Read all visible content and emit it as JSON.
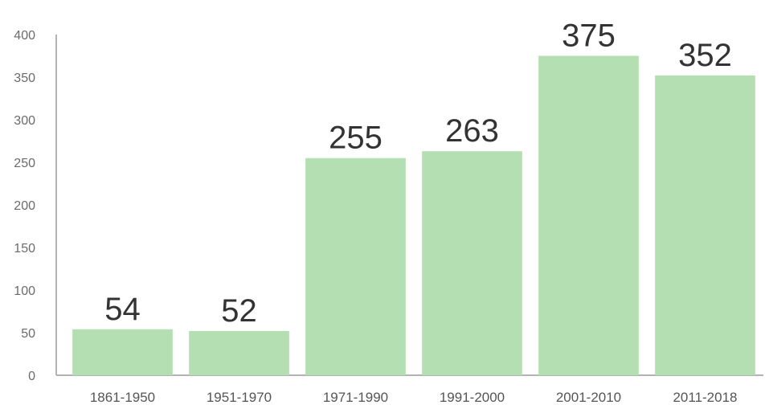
{
  "chart_data": {
    "type": "bar",
    "title": "",
    "xlabel": "",
    "ylabel": "",
    "categories": [
      "1861-1950",
      "1951-1970",
      "1971-1990",
      "1991-2000",
      "2001-2010",
      "2011-2018"
    ],
    "values": [
      54,
      52,
      255,
      263,
      375,
      352
    ],
    "ylim": [
      0,
      400
    ],
    "yticks": [
      "0",
      "50",
      "100",
      "150",
      "200",
      "250",
      "300",
      "350",
      "400"
    ],
    "data_labels": [
      "54",
      "52",
      "255",
      "263",
      "375",
      "352"
    ],
    "grid": false,
    "legend": false,
    "colors": {
      "bar": "#b3dfb3",
      "axis": "#9a9a9a"
    }
  }
}
